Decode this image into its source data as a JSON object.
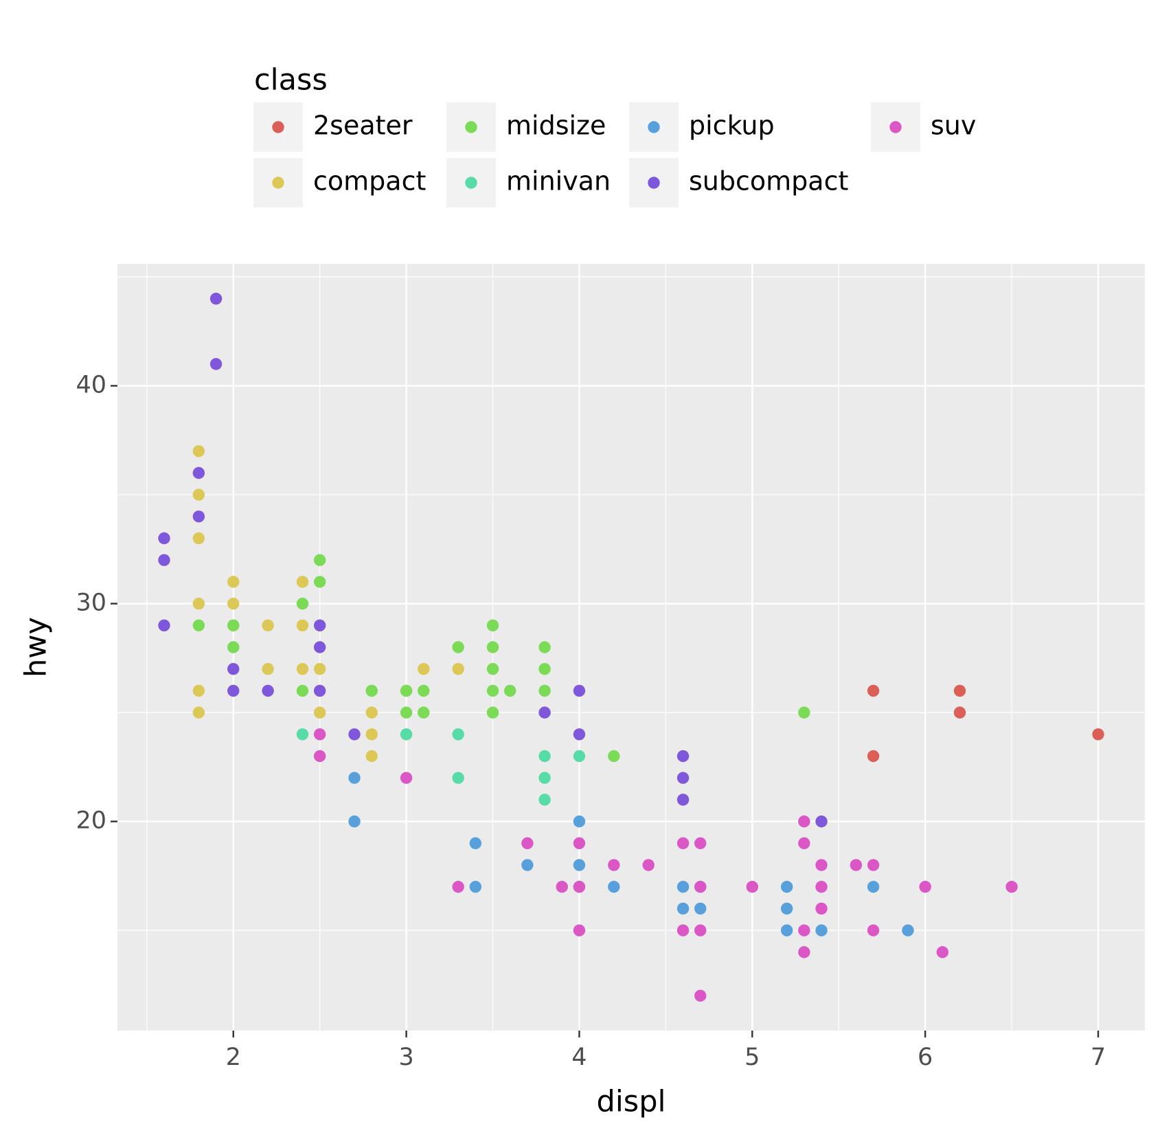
{
  "chart_data": {
    "type": "scatter",
    "x_label": "displ",
    "y_label": "hwy",
    "legend_title": "class",
    "xlim": [
      1.33,
      7.27
    ],
    "ylim": [
      10.4,
      45.6
    ],
    "xticks": [
      2,
      3,
      4,
      5,
      6,
      7
    ],
    "yticks": [
      20,
      30,
      40
    ],
    "x_minor_ticks": [
      1.5,
      2.5,
      3.5,
      4.5,
      5.5,
      6.5
    ],
    "y_minor_ticks": [
      15,
      25,
      35,
      45
    ],
    "grid": true,
    "legend_position": "top",
    "series": [
      {
        "name": "2seater",
        "color": "#db5f57",
        "x": [
          5.7,
          5.7,
          6.2,
          6.2,
          7
        ],
        "values": [
          26,
          23,
          26,
          25,
          24
        ]
      },
      {
        "name": "compact",
        "color": "#dbc857",
        "x": [
          1.8,
          1.8,
          1.8,
          1.8,
          1.8,
          1.8,
          2,
          2,
          2,
          2.2,
          2.2,
          2.4,
          2.4,
          2.4,
          2.5,
          2.5,
          2.8,
          2.8,
          2.8,
          2.8,
          3,
          3.1,
          3.3
        ],
        "values": [
          37,
          35,
          33,
          30,
          26,
          25,
          31,
          30,
          29,
          29,
          27,
          31,
          29,
          27,
          27,
          25,
          26,
          25,
          24,
          23,
          26,
          27,
          27
        ]
      },
      {
        "name": "midsize",
        "color": "#7bdb57",
        "x": [
          1.8,
          2,
          2,
          2.4,
          2.4,
          2.5,
          2.5,
          2.8,
          3,
          3.1,
          3.1,
          3.3,
          3.5,
          3.5,
          3.5,
          3.5,
          3.5,
          3.6,
          3.8,
          3.8,
          3.8,
          4.2,
          5.3,
          3
        ],
        "values": [
          29,
          29,
          28,
          30,
          26,
          32,
          31,
          26,
          25,
          26,
          25,
          28,
          29,
          28,
          27,
          26,
          25,
          26,
          28,
          27,
          26,
          23,
          25,
          26
        ]
      },
      {
        "name": "minivan",
        "color": "#57dba7",
        "x": [
          2.4,
          3,
          3.3,
          3.3,
          3.8,
          3.8,
          3.8,
          4
        ],
        "values": [
          24,
          24,
          24,
          22,
          23,
          22,
          21,
          23
        ]
      },
      {
        "name": "pickup",
        "color": "#57a0db",
        "x": [
          2.7,
          2.7,
          3.4,
          3.4,
          3.7,
          4,
          4,
          4.2,
          4.6,
          4.6,
          4.7,
          4.7,
          5.2,
          5.2,
          5.2,
          5.4,
          5.7,
          5.9,
          4
        ],
        "values": [
          22,
          20,
          19,
          17,
          18,
          20,
          18,
          17,
          17,
          16,
          17,
          16,
          17,
          16,
          15,
          15,
          17,
          15,
          17
        ]
      },
      {
        "name": "subcompact",
        "color": "#7f57db",
        "x": [
          1.6,
          1.6,
          1.6,
          1.8,
          1.8,
          1.9,
          1.9,
          2,
          2,
          2.2,
          2.5,
          2.5,
          2.5,
          2.7,
          3.8,
          4,
          4,
          4.6,
          4.6,
          4.6,
          5.4
        ],
        "values": [
          33,
          32,
          29,
          36,
          34,
          44,
          41,
          27,
          26,
          26,
          29,
          28,
          26,
          24,
          25,
          26,
          24,
          23,
          22,
          21,
          20
        ]
      },
      {
        "name": "suv",
        "color": "#db57c6",
        "x": [
          2.5,
          2.5,
          3,
          3.3,
          3.7,
          3.9,
          4,
          4,
          4,
          4.2,
          4.4,
          4.6,
          4.6,
          4.7,
          4.7,
          4.7,
          4.7,
          5,
          5.3,
          5.3,
          5.3,
          5.3,
          5.4,
          5.4,
          5.4,
          5.6,
          5.7,
          5.7,
          6,
          6.1,
          6.5
        ],
        "values": [
          24,
          23,
          22,
          17,
          19,
          17,
          19,
          17,
          15,
          18,
          18,
          19,
          15,
          19,
          17,
          15,
          12,
          17,
          20,
          19,
          15,
          14,
          18,
          17,
          16,
          18,
          18,
          15,
          17,
          14,
          17
        ]
      }
    ]
  }
}
